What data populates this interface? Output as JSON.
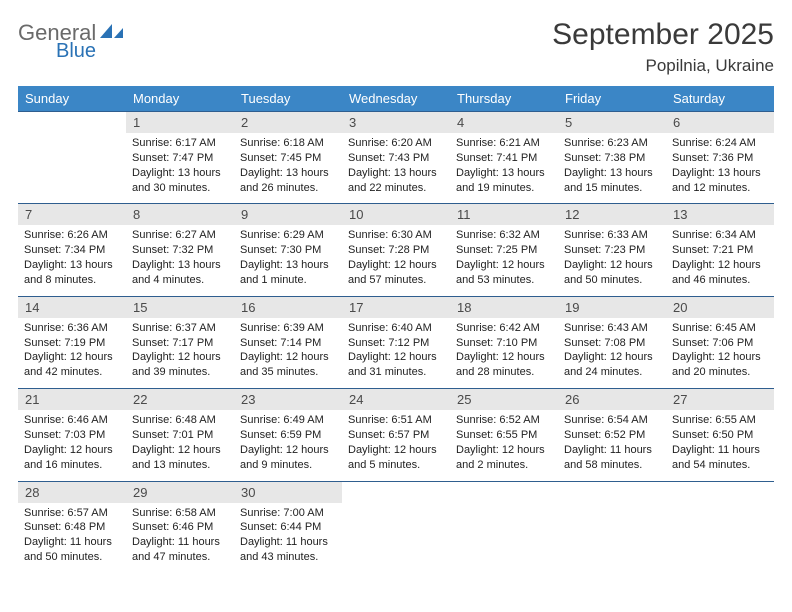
{
  "logo": {
    "part1": "General",
    "part2": "Blue"
  },
  "title": "September 2025",
  "location": "Popilnia, Ukraine",
  "colors": {
    "header_bg": "#3b86c6",
    "header_text": "#ffffff",
    "row_border": "#2f5e8f",
    "daynum_bg": "#e7e7e7",
    "daynum_text": "#4a4a4a",
    "body_text": "#222222",
    "logo_gray": "#6a6a6a",
    "logo_blue": "#2a72b5",
    "title_text": "#3a3a3a"
  },
  "weekdays": [
    "Sunday",
    "Monday",
    "Tuesday",
    "Wednesday",
    "Thursday",
    "Friday",
    "Saturday"
  ],
  "weeks": [
    [
      {
        "empty": true
      },
      {
        "n": "1",
        "sr": "6:17 AM",
        "ss": "7:47 PM",
        "dl": "13 hours and 30 minutes."
      },
      {
        "n": "2",
        "sr": "6:18 AM",
        "ss": "7:45 PM",
        "dl": "13 hours and 26 minutes."
      },
      {
        "n": "3",
        "sr": "6:20 AM",
        "ss": "7:43 PM",
        "dl": "13 hours and 22 minutes."
      },
      {
        "n": "4",
        "sr": "6:21 AM",
        "ss": "7:41 PM",
        "dl": "13 hours and 19 minutes."
      },
      {
        "n": "5",
        "sr": "6:23 AM",
        "ss": "7:38 PM",
        "dl": "13 hours and 15 minutes."
      },
      {
        "n": "6",
        "sr": "6:24 AM",
        "ss": "7:36 PM",
        "dl": "13 hours and 12 minutes."
      }
    ],
    [
      {
        "n": "7",
        "sr": "6:26 AM",
        "ss": "7:34 PM",
        "dl": "13 hours and 8 minutes."
      },
      {
        "n": "8",
        "sr": "6:27 AM",
        "ss": "7:32 PM",
        "dl": "13 hours and 4 minutes."
      },
      {
        "n": "9",
        "sr": "6:29 AM",
        "ss": "7:30 PM",
        "dl": "13 hours and 1 minute."
      },
      {
        "n": "10",
        "sr": "6:30 AM",
        "ss": "7:28 PM",
        "dl": "12 hours and 57 minutes."
      },
      {
        "n": "11",
        "sr": "6:32 AM",
        "ss": "7:25 PM",
        "dl": "12 hours and 53 minutes."
      },
      {
        "n": "12",
        "sr": "6:33 AM",
        "ss": "7:23 PM",
        "dl": "12 hours and 50 minutes."
      },
      {
        "n": "13",
        "sr": "6:34 AM",
        "ss": "7:21 PM",
        "dl": "12 hours and 46 minutes."
      }
    ],
    [
      {
        "n": "14",
        "sr": "6:36 AM",
        "ss": "7:19 PM",
        "dl": "12 hours and 42 minutes."
      },
      {
        "n": "15",
        "sr": "6:37 AM",
        "ss": "7:17 PM",
        "dl": "12 hours and 39 minutes."
      },
      {
        "n": "16",
        "sr": "6:39 AM",
        "ss": "7:14 PM",
        "dl": "12 hours and 35 minutes."
      },
      {
        "n": "17",
        "sr": "6:40 AM",
        "ss": "7:12 PM",
        "dl": "12 hours and 31 minutes."
      },
      {
        "n": "18",
        "sr": "6:42 AM",
        "ss": "7:10 PM",
        "dl": "12 hours and 28 minutes."
      },
      {
        "n": "19",
        "sr": "6:43 AM",
        "ss": "7:08 PM",
        "dl": "12 hours and 24 minutes."
      },
      {
        "n": "20",
        "sr": "6:45 AM",
        "ss": "7:06 PM",
        "dl": "12 hours and 20 minutes."
      }
    ],
    [
      {
        "n": "21",
        "sr": "6:46 AM",
        "ss": "7:03 PM",
        "dl": "12 hours and 16 minutes."
      },
      {
        "n": "22",
        "sr": "6:48 AM",
        "ss": "7:01 PM",
        "dl": "12 hours and 13 minutes."
      },
      {
        "n": "23",
        "sr": "6:49 AM",
        "ss": "6:59 PM",
        "dl": "12 hours and 9 minutes."
      },
      {
        "n": "24",
        "sr": "6:51 AM",
        "ss": "6:57 PM",
        "dl": "12 hours and 5 minutes."
      },
      {
        "n": "25",
        "sr": "6:52 AM",
        "ss": "6:55 PM",
        "dl": "12 hours and 2 minutes."
      },
      {
        "n": "26",
        "sr": "6:54 AM",
        "ss": "6:52 PM",
        "dl": "11 hours and 58 minutes."
      },
      {
        "n": "27",
        "sr": "6:55 AM",
        "ss": "6:50 PM",
        "dl": "11 hours and 54 minutes."
      }
    ],
    [
      {
        "n": "28",
        "sr": "6:57 AM",
        "ss": "6:48 PM",
        "dl": "11 hours and 50 minutes."
      },
      {
        "n": "29",
        "sr": "6:58 AM",
        "ss": "6:46 PM",
        "dl": "11 hours and 47 minutes."
      },
      {
        "n": "30",
        "sr": "7:00 AM",
        "ss": "6:44 PM",
        "dl": "11 hours and 43 minutes."
      },
      {
        "empty": true
      },
      {
        "empty": true
      },
      {
        "empty": true
      },
      {
        "empty": true
      }
    ]
  ],
  "labels": {
    "sunrise": "Sunrise: ",
    "sunset": "Sunset: ",
    "daylight": "Daylight: "
  },
  "fonts": {
    "title_pt": 30,
    "location_pt": 17,
    "weekday_pt": 13,
    "daynum_pt": 13,
    "body_pt": 11
  }
}
